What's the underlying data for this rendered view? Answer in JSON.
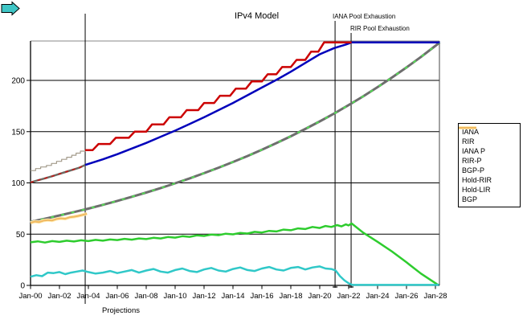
{
  "title": "IPv4 Model",
  "annotations": {
    "iana_exhaustion": {
      "label": "IANA Pool Exhaustion",
      "t": 2021.06
    },
    "rir_exhaustion": {
      "label": "RIR Pool Exhaustion",
      "t": 2022.17
    },
    "projections": {
      "label": "Projections",
      "t": 2003.78,
      "arrow_color": "#3fc6c6"
    }
  },
  "legend": {
    "items": [
      {
        "id": "iana",
        "label": "IANA",
        "color": "#a39b8b",
        "width": 1.2
      },
      {
        "id": "rir",
        "label": "RIR",
        "color": "#6e6a62",
        "width": 3
      },
      {
        "id": "iana-p",
        "label": "IANA P",
        "color": "#cc0000",
        "width": 2.5
      },
      {
        "id": "rir-p",
        "label": "RIR-P",
        "color": "#0000bb",
        "width": 2.5
      },
      {
        "id": "bgp-p",
        "label": "BGP-P",
        "color": "#6e6e6e",
        "width": 3,
        "overlay_color": "#55dd55",
        "overlay_dash": "3,5"
      },
      {
        "id": "hold-rir",
        "label": "Hold-RIR",
        "color": "#30c8c8",
        "width": 2.5
      },
      {
        "id": "hold-lir",
        "label": "Hold-LIR",
        "color": "#2ecc2e",
        "width": 2.5
      },
      {
        "id": "bgp",
        "label": "BGP",
        "color": "#efb85f",
        "width": 2,
        "halo_color": "#ffe9b0",
        "halo_width": 4
      }
    ]
  },
  "chart_data": {
    "type": "line",
    "title": "IPv4 Model",
    "xlabel": "",
    "ylabel": "",
    "grid": true,
    "x_axis": {
      "range": [
        2000,
        2028.3
      ],
      "tick_years": [
        2000,
        2002,
        2004,
        2006,
        2008,
        2010,
        2012,
        2014,
        2016,
        2018,
        2020,
        2022,
        2024,
        2026,
        2028
      ],
      "tick_labels": [
        "Jan-00",
        "Jan-02",
        "Jan-04",
        "Jan-06",
        "Jan-08",
        "Jan-10",
        "Jan-12",
        "Jan-14",
        "Jan-16",
        "Jan-18",
        "Jan-20",
        "Jan-22",
        "Jan-24",
        "Jan-26",
        "Jan-28"
      ]
    },
    "y_axis": {
      "range": [
        0,
        238
      ],
      "ticks": [
        0,
        50,
        100,
        150,
        200
      ],
      "tick_labels": [
        "0",
        "50",
        "100",
        "150",
        "200"
      ]
    },
    "ceiling_value": 237,
    "series": [
      {
        "name": "BGP-P",
        "id": "bgp-p",
        "color": "#6e6e6e",
        "width": 3,
        "overlay_color": "#55dd55",
        "overlay_dash": "4,9",
        "points": [
          [
            2000,
            62
          ],
          [
            2001,
            65
          ],
          [
            2002,
            68.2
          ],
          [
            2003,
            71.5
          ],
          [
            2004,
            74.9
          ],
          [
            2005,
            78.6
          ],
          [
            2006,
            82.4
          ],
          [
            2007,
            86.4
          ],
          [
            2008,
            90.6
          ],
          [
            2009,
            95
          ],
          [
            2010,
            99.6
          ],
          [
            2011,
            104.4
          ],
          [
            2012,
            109.5
          ],
          [
            2013,
            114.8
          ],
          [
            2014,
            120.4
          ],
          [
            2015,
            126.2
          ],
          [
            2016,
            132.4
          ],
          [
            2017,
            138.8
          ],
          [
            2018,
            145.5
          ],
          [
            2019,
            152.6
          ],
          [
            2020,
            160
          ],
          [
            2021,
            167.7
          ],
          [
            2022,
            175.9
          ],
          [
            2023,
            184.4
          ],
          [
            2024,
            193.4
          ],
          [
            2025,
            202.8
          ],
          [
            2026,
            212.6
          ],
          [
            2027,
            222.9
          ],
          [
            2028,
            233.7
          ],
          [
            2028.3,
            237
          ]
        ]
      },
      {
        "name": "BGP",
        "id": "bgp",
        "color": "#efb85f",
        "width": 2,
        "halo_color": "#ffe9b0",
        "halo_width": 4,
        "points": [
          [
            2000,
            61
          ],
          [
            2000.3,
            62.3
          ],
          [
            2000.6,
            61.8
          ],
          [
            2000.9,
            63.2
          ],
          [
            2001.2,
            63.8
          ],
          [
            2001.5,
            63.4
          ],
          [
            2001.8,
            64.8
          ],
          [
            2002.1,
            65.4
          ],
          [
            2002.4,
            65
          ],
          [
            2002.7,
            66.4
          ],
          [
            2003,
            67
          ],
          [
            2003.3,
            67.8
          ],
          [
            2003.6,
            68.8
          ],
          [
            2003.9,
            70
          ]
        ]
      },
      {
        "name": "RIR",
        "id": "rir",
        "color": "#6e6a62",
        "width": 2.5,
        "overlay_color": "#cc1111",
        "overlay_dash": "4,5",
        "points": [
          [
            2000,
            100.5
          ],
          [
            2000.5,
            102.5
          ],
          [
            2001,
            104.5
          ],
          [
            2001.5,
            106.5
          ],
          [
            2002,
            108.8
          ],
          [
            2002.5,
            111
          ],
          [
            2003,
            113.2
          ],
          [
            2003.4,
            115
          ],
          [
            2003.78,
            117.5
          ]
        ]
      },
      {
        "name": "IANA",
        "id": "iana",
        "color": "#a39b8b",
        "width": 1.2,
        "points": [
          [
            2000,
            112
          ],
          [
            2000.35,
            112
          ],
          [
            2000.35,
            114
          ],
          [
            2000.7,
            114
          ],
          [
            2000.7,
            115.5
          ],
          [
            2001.1,
            115.5
          ],
          [
            2001.1,
            117
          ],
          [
            2001.45,
            117
          ],
          [
            2001.45,
            119
          ],
          [
            2001.8,
            119
          ],
          [
            2001.8,
            121
          ],
          [
            2002.15,
            121
          ],
          [
            2002.15,
            123
          ],
          [
            2002.5,
            123
          ],
          [
            2002.5,
            125
          ],
          [
            2002.85,
            125
          ],
          [
            2002.85,
            127
          ],
          [
            2003.15,
            127
          ],
          [
            2003.15,
            129
          ],
          [
            2003.45,
            129
          ],
          [
            2003.45,
            131
          ],
          [
            2003.78,
            131
          ],
          [
            2003.78,
            132
          ]
        ]
      },
      {
        "name": "Hold-LIR",
        "id": "hold-lir",
        "color": "#2ecc2e",
        "width": 2.5,
        "points": [
          [
            2000,
            42
          ],
          [
            2000.5,
            43
          ],
          [
            2001,
            41.8
          ],
          [
            2001.5,
            43.2
          ],
          [
            2002,
            42.4
          ],
          [
            2002.5,
            43.6
          ],
          [
            2003,
            42.8
          ],
          [
            2003.5,
            44
          ],
          [
            2004,
            43.2
          ],
          [
            2004.5,
            44.4
          ],
          [
            2005,
            43.6
          ],
          [
            2005.5,
            44.8
          ],
          [
            2006,
            44.2
          ],
          [
            2006.5,
            45.4
          ],
          [
            2007,
            44.6
          ],
          [
            2007.5,
            45.8
          ],
          [
            2008,
            45.2
          ],
          [
            2008.5,
            46.4
          ],
          [
            2009,
            45.8
          ],
          [
            2009.5,
            47.2
          ],
          [
            2010,
            46.6
          ],
          [
            2010.5,
            48
          ],
          [
            2011,
            47.4
          ],
          [
            2011.5,
            48.8
          ],
          [
            2012,
            48.2
          ],
          [
            2012.5,
            49.6
          ],
          [
            2013,
            49
          ],
          [
            2013.5,
            50.4
          ],
          [
            2014,
            49.8
          ],
          [
            2014.5,
            51.2
          ],
          [
            2015,
            50.6
          ],
          [
            2015.5,
            52.2
          ],
          [
            2016,
            51.6
          ],
          [
            2016.5,
            53.2
          ],
          [
            2017,
            52.6
          ],
          [
            2017.5,
            54.4
          ],
          [
            2018,
            53.8
          ],
          [
            2018.5,
            55.6
          ],
          [
            2019,
            55
          ],
          [
            2019.5,
            57
          ],
          [
            2020,
            56
          ],
          [
            2020.4,
            58
          ],
          [
            2020.8,
            57
          ],
          [
            2021.2,
            58.8
          ],
          [
            2021.5,
            57.6
          ],
          [
            2021.8,
            59.5
          ],
          [
            2022,
            58.5
          ],
          [
            2022.2,
            60.5
          ],
          [
            2023,
            51.5
          ],
          [
            2024,
            42.5
          ],
          [
            2025,
            33
          ],
          [
            2026,
            22.5
          ],
          [
            2027,
            11.5
          ],
          [
            2028.2,
            0.3
          ]
        ]
      },
      {
        "name": "Hold-RIR",
        "id": "hold-rir",
        "color": "#30c8c8",
        "width": 2.5,
        "points": [
          [
            2000,
            8.5
          ],
          [
            2000.4,
            10
          ],
          [
            2000.8,
            9
          ],
          [
            2001.2,
            12.5
          ],
          [
            2001.6,
            12
          ],
          [
            2002,
            13
          ],
          [
            2002.4,
            11
          ],
          [
            2002.8,
            12.5
          ],
          [
            2003.2,
            13.5
          ],
          [
            2003.6,
            14.5
          ],
          [
            2004,
            13
          ],
          [
            2004.5,
            11.5
          ],
          [
            2005,
            12.5
          ],
          [
            2005.5,
            14
          ],
          [
            2006,
            12
          ],
          [
            2006.5,
            13.5
          ],
          [
            2007,
            15
          ],
          [
            2007.5,
            12.5
          ],
          [
            2008,
            14.5
          ],
          [
            2008.5,
            16
          ],
          [
            2009,
            13.5
          ],
          [
            2009.5,
            12.5
          ],
          [
            2010,
            15
          ],
          [
            2010.5,
            16.5
          ],
          [
            2011,
            14
          ],
          [
            2011.5,
            13
          ],
          [
            2012,
            15.5
          ],
          [
            2012.5,
            17
          ],
          [
            2013,
            14.5
          ],
          [
            2013.5,
            13.5
          ],
          [
            2014,
            16
          ],
          [
            2014.5,
            17.5
          ],
          [
            2015,
            15
          ],
          [
            2015.5,
            14
          ],
          [
            2016,
            16.5
          ],
          [
            2016.5,
            18
          ],
          [
            2017,
            15.5
          ],
          [
            2017.5,
            14.5
          ],
          [
            2018,
            17
          ],
          [
            2018.5,
            18
          ],
          [
            2019,
            15.5
          ],
          [
            2019.5,
            17.5
          ],
          [
            2020,
            18.5
          ],
          [
            2020.4,
            16.5
          ],
          [
            2020.8,
            16
          ],
          [
            2021.1,
            14.5
          ],
          [
            2021.4,
            9
          ],
          [
            2021.7,
            5
          ],
          [
            2022,
            2
          ],
          [
            2022.25,
            0.5
          ],
          [
            2028.25,
            0.5
          ]
        ]
      },
      {
        "name": "RIR-P",
        "id": "rir-p",
        "color": "#0000bb",
        "width": 2.5,
        "points": [
          [
            2003.78,
            117.5
          ],
          [
            2005,
            123
          ],
          [
            2006,
            128
          ],
          [
            2007,
            133.5
          ],
          [
            2008,
            139
          ],
          [
            2009,
            145
          ],
          [
            2010,
            151
          ],
          [
            2011,
            157.5
          ],
          [
            2012,
            164
          ],
          [
            2013,
            171
          ],
          [
            2014,
            178
          ],
          [
            2015,
            185.5
          ],
          [
            2016,
            193
          ],
          [
            2017,
            200.5
          ],
          [
            2018,
            208.5
          ],
          [
            2019,
            217
          ],
          [
            2020,
            225.5
          ],
          [
            2021,
            231.5
          ],
          [
            2021.8,
            235
          ],
          [
            2022.2,
            237
          ],
          [
            2028.3,
            237
          ]
        ]
      },
      {
        "name": "IANA P",
        "id": "iana-p",
        "color": "#cc0000",
        "width": 2.5,
        "points": [
          [
            2003.78,
            132
          ],
          [
            2004.3,
            132
          ],
          [
            2004.7,
            138
          ],
          [
            2005.5,
            138
          ],
          [
            2005.9,
            144
          ],
          [
            2006.8,
            144
          ],
          [
            2007.2,
            150
          ],
          [
            2008,
            150
          ],
          [
            2008.4,
            157
          ],
          [
            2009.2,
            157
          ],
          [
            2009.6,
            164
          ],
          [
            2010.4,
            164
          ],
          [
            2010.8,
            171
          ],
          [
            2011.6,
            171
          ],
          [
            2012,
            178
          ],
          [
            2012.7,
            178
          ],
          [
            2013.1,
            185
          ],
          [
            2013.8,
            185
          ],
          [
            2014.2,
            192
          ],
          [
            2014.9,
            192
          ],
          [
            2015.3,
            199
          ],
          [
            2016,
            199
          ],
          [
            2016.4,
            206
          ],
          [
            2017,
            206
          ],
          [
            2017.4,
            213
          ],
          [
            2018,
            213
          ],
          [
            2018.4,
            220
          ],
          [
            2019,
            220
          ],
          [
            2019.4,
            228
          ],
          [
            2019.9,
            228
          ],
          [
            2020.3,
            237
          ],
          [
            2022.2,
            237
          ]
        ]
      }
    ]
  }
}
